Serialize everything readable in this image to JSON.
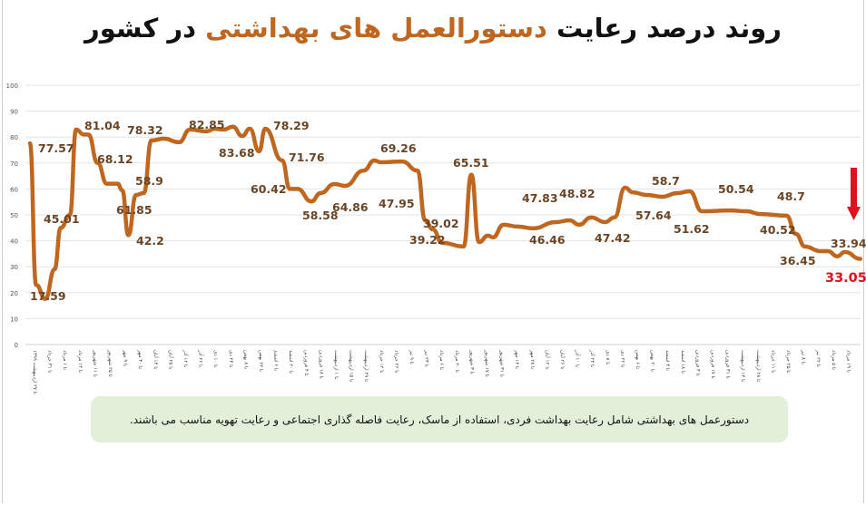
{
  "title": {
    "part1": "روند درصد رعایت",
    "highlight": "دستورالعمل های بهداشتی",
    "part2": "در کشور"
  },
  "note": "دستورعمل های بهداشتی شامل رعایت بهداشت فردی، استفاده از ماسک، رعایت فاصله گذاری اجتماعی و رعایت تهویه مناسب می باشند.",
  "colors": {
    "line": "#c0661f",
    "label": "#6b4424",
    "highlight_label": "#e0101e",
    "arrow": "#e0101e",
    "grid": "#e3e3e3",
    "note_bg": "#e2efd9"
  },
  "chart_data": {
    "type": "line",
    "title": "روند درصد رعایت دستورالعمل های بهداشتی در کشور",
    "xlabel": "",
    "ylabel": "",
    "ylim": [
      0,
      100
    ],
    "yticks": [
      0,
      10,
      20,
      30,
      40,
      50,
      60,
      70,
      80,
      90,
      100
    ],
    "grid": true,
    "legend": "none",
    "categories": [
      "تا ۲۷ اردیبهشت ۱۳۹۹",
      "تا ۳۱ خرداد",
      "تا ۱ مرداد",
      "تا ۱۴ مرداد",
      "تا ۱۱ شهریور",
      "تا ۲۵ شهریور",
      "تا ۹ مهر",
      "تا ۳۰ مهر",
      "تا ۱۴ آبان",
      "تا ۲۵ آبان",
      "تا ۱۲ آذر",
      "تا ۲۶ آذر",
      "تا ۱۰ دی",
      "تا ۲۴ دی",
      "تا ۸ بهمن",
      "تا ۲۲ بهمن",
      "تا ۶ اسفند",
      "تا ۲۰ اسفند",
      "تا ۴ فروردین",
      "تا ۱۸ فروردین",
      "تا ۱ اردیبهشت",
      "تا ۱۵ اردیبهشت",
      "تا ۲۹ اردیبهشت",
      "تا ۱۲ خرداد",
      "تا ۲۶ خرداد",
      "تا ۹ تیر",
      "تا ۲۳ تیر",
      "تا ۶ مرداد",
      "تا ۲۰ مرداد",
      "تا ۳ شهریور",
      "تا ۱۷ شهریور",
      "تا ۳۱ شهریور",
      "تا ۱۴ مهر",
      "تا ۲۸ مهر",
      "تا ۱۲ آبان",
      "تا ۲۶ آبان",
      "تا ۱۰ آذر",
      "تا ۲۴ آذر",
      "تا ۸ دی",
      "تا ۲۲ دی",
      "تا ۶ بهمن",
      "تا ۲۰ بهمن",
      "تا ۴ اسفند",
      "تا ۱۸ اسفند",
      "تا ۳ فروردین",
      "تا ۱۷ فروردین",
      "تا ۳۱ فروردین",
      "تا ۱۴ اردیبهشت",
      "تا ۲۸ اردیبهشت",
      "تا ۱۱ خرداد",
      "تا ۲۵ خرداد",
      "تا ۸ تیر",
      "تا ۲۲ تیر",
      "تا ۵ مرداد",
      "تا ۱۹ مرداد"
    ],
    "series": [
      {
        "x": [
          0,
          0.4,
          1.0,
          1.6,
          2.0,
          2.6,
          3.0,
          3.5,
          3.8,
          4.4,
          5.0,
          5.7,
          6.0,
          6.4,
          6.9,
          7.4,
          7.9,
          8.7,
          9.7,
          10.4,
          11.5,
          12.0,
          12.6,
          13.2,
          13.8,
          14.3,
          14.9,
          15.3,
          16.4,
          16.9,
          17.4,
          18.3,
          18.9,
          19.8,
          20.5,
          21.7,
          22.4,
          22.8,
          24.2,
          25.2,
          25.7,
          26.2,
          26.8,
          28.2,
          28.7,
          29.2,
          29.8,
          30.1,
          30.8,
          31.7,
          32.7,
          34.2,
          35.1,
          35.7,
          36.5,
          37.4,
          38.0,
          38.7,
          39.2,
          40.1,
          41.1,
          42.1,
          42.9,
          43.7,
          45.5,
          46.6,
          47.5,
          49.2,
          49.8,
          50.4,
          51.4,
          51.9,
          52.5,
          53.0,
          54.0
        ],
        "values": [
          77.6,
          23,
          17.6,
          29,
          45,
          50,
          82.9,
          81,
          81,
          70,
          62,
          62,
          59.5,
          42.2,
          57.7,
          58.4,
          78.7,
          79.4,
          78,
          82.9,
          82.2,
          83.2,
          82.9,
          84,
          80.4,
          83.2,
          74.5,
          83.2,
          71,
          60,
          60,
          55.2,
          58.4,
          61.9,
          61.2,
          67.1,
          71,
          70.3,
          70.6,
          67.1,
          47.9,
          44.4,
          39.2,
          37.8,
          65.5,
          39.5,
          42,
          41.3,
          46.2,
          45.5,
          44.8,
          47.2,
          47.9,
          46.2,
          49,
          47.2,
          49,
          60.5,
          58.7,
          57.7,
          57,
          58.4,
          59.1,
          51.4,
          51.7,
          51.4,
          50.3,
          49.7,
          42.7,
          37.8,
          36,
          36,
          34,
          35.7,
          33.05
        ]
      }
    ],
    "data_labels": [
      "77.57",
      "17.59",
      "45.01",
      "81.04",
      "68.12",
      "61.85",
      "42.2",
      "58.9",
      "78.32",
      "82.85",
      "83.68",
      "78.29",
      "71.76",
      "60.42",
      "58.58",
      "64.86",
      "69.26",
      "47.95",
      "39.22",
      "39.02",
      "65.51",
      "47.83",
      "48.82",
      "46.46",
      "47.42",
      "58.7",
      "57.64",
      "51.62",
      "50.54",
      "48.7",
      "40.52",
      "36.45",
      "33.94"
    ],
    "highlight_label": "33.05",
    "annotation_arrow": "down"
  }
}
